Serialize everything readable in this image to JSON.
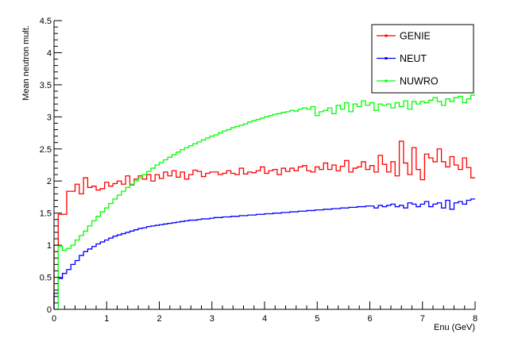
{
  "chart_data": {
    "type": "line",
    "title": "",
    "xlabel": "Enu (GeV)",
    "ylabel": "Mean neutron mult.",
    "xlim": [
      0,
      8
    ],
    "ylim": [
      0,
      4.5
    ],
    "x_ticks": [
      "0",
      "1",
      "2",
      "3",
      "4",
      "5",
      "6",
      "7",
      "8"
    ],
    "y_ticks": [
      "0",
      "0.5",
      "1",
      "1.5",
      "2",
      "2.5",
      "3",
      "3.5",
      "4",
      "4.5"
    ],
    "grid": false,
    "legend_position": "top-right",
    "step_style": "histogram",
    "bin_width": 0.08,
    "series": [
      {
        "name": "GENIE",
        "color": "#ff0000",
        "values": [
          1.0,
          1.48,
          1.48,
          1.84,
          1.84,
          1.95,
          1.8,
          2.05,
          1.9,
          1.92,
          1.86,
          1.88,
          1.98,
          1.92,
          1.96,
          2.0,
          1.95,
          2.08,
          1.94,
          2.03,
          2.08,
          2.03,
          2.1,
          2.0,
          2.1,
          2.04,
          2.14,
          2.08,
          2.16,
          2.06,
          2.14,
          2.03,
          2.1,
          2.17,
          2.15,
          2.07,
          2.12,
          2.14,
          2.14,
          2.1,
          2.12,
          2.16,
          2.12,
          2.1,
          2.2,
          2.11,
          2.14,
          2.13,
          2.16,
          2.22,
          2.12,
          2.16,
          2.18,
          2.1,
          2.2,
          2.15,
          2.2,
          2.16,
          2.22,
          2.24,
          2.16,
          2.14,
          2.22,
          2.18,
          2.28,
          2.18,
          2.25,
          2.16,
          2.23,
          2.32,
          2.14,
          2.2,
          2.22,
          2.3,
          2.18,
          2.24,
          2.14,
          2.4,
          2.26,
          2.14,
          2.3,
          2.08,
          2.62,
          2.28,
          2.1,
          2.52,
          2.18,
          2.02,
          2.42,
          2.36,
          2.3,
          2.5,
          2.3,
          2.22,
          2.38,
          2.25,
          2.18,
          2.36,
          2.21,
          2.05
        ]
      },
      {
        "name": "NEUT",
        "color": "#0000ff",
        "values": [
          0.25,
          0.48,
          0.56,
          0.62,
          0.7,
          0.76,
          0.84,
          0.9,
          0.94,
          0.98,
          1.02,
          1.05,
          1.08,
          1.11,
          1.14,
          1.16,
          1.18,
          1.2,
          1.22,
          1.24,
          1.26,
          1.27,
          1.29,
          1.3,
          1.31,
          1.32,
          1.33,
          1.34,
          1.35,
          1.36,
          1.37,
          1.38,
          1.39,
          1.39,
          1.4,
          1.41,
          1.41,
          1.42,
          1.43,
          1.43,
          1.44,
          1.44,
          1.45,
          1.45,
          1.46,
          1.46,
          1.47,
          1.47,
          1.48,
          1.48,
          1.49,
          1.49,
          1.5,
          1.5,
          1.51,
          1.51,
          1.52,
          1.52,
          1.53,
          1.53,
          1.54,
          1.54,
          1.55,
          1.55,
          1.56,
          1.56,
          1.57,
          1.57,
          1.58,
          1.58,
          1.59,
          1.59,
          1.6,
          1.6,
          1.61,
          1.61,
          1.58,
          1.62,
          1.6,
          1.62,
          1.64,
          1.6,
          1.62,
          1.58,
          1.66,
          1.64,
          1.6,
          1.64,
          1.68,
          1.6,
          1.64,
          1.66,
          1.58,
          1.7,
          1.56,
          1.66,
          1.68,
          1.64,
          1.7,
          1.72
        ]
      },
      {
        "name": "NUWRO",
        "color": "#00ff00",
        "values": [
          0.0,
          0.98,
          0.92,
          0.95,
          1.0,
          1.08,
          1.15,
          1.22,
          1.3,
          1.38,
          1.45,
          1.52,
          1.58,
          1.65,
          1.72,
          1.78,
          1.84,
          1.9,
          1.95,
          2.0,
          2.05,
          2.1,
          2.15,
          2.2,
          2.25,
          2.29,
          2.33,
          2.37,
          2.41,
          2.45,
          2.49,
          2.52,
          2.55,
          2.58,
          2.61,
          2.64,
          2.67,
          2.7,
          2.72,
          2.75,
          2.78,
          2.8,
          2.83,
          2.85,
          2.87,
          2.89,
          2.92,
          2.94,
          2.96,
          2.98,
          3.0,
          3.02,
          3.04,
          3.05,
          3.07,
          3.08,
          3.1,
          3.09,
          3.12,
          3.14,
          3.12,
          3.16,
          3.02,
          3.08,
          3.1,
          3.14,
          3.05,
          3.18,
          3.12,
          3.22,
          3.08,
          3.2,
          3.16,
          3.25,
          3.18,
          3.22,
          3.1,
          3.2,
          3.18,
          3.2,
          3.14,
          3.22,
          3.16,
          3.25,
          3.12,
          3.24,
          3.2,
          3.24,
          3.22,
          3.26,
          3.3,
          3.24,
          3.18,
          3.28,
          3.24,
          3.3,
          3.32,
          3.22,
          3.28,
          3.34
        ]
      }
    ]
  }
}
